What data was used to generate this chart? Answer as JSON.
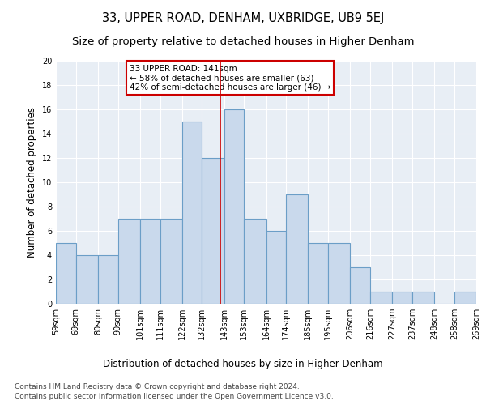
{
  "title": "33, UPPER ROAD, DENHAM, UXBRIDGE, UB9 5EJ",
  "subtitle": "Size of property relative to detached houses in Higher Denham",
  "xlabel": "Distribution of detached houses by size in Higher Denham",
  "ylabel": "Number of detached properties",
  "bins": [
    59,
    69,
    80,
    90,
    101,
    111,
    122,
    132,
    143,
    153,
    164,
    174,
    185,
    195,
    206,
    216,
    227,
    237,
    248,
    258,
    269
  ],
  "counts": [
    5,
    4,
    4,
    7,
    7,
    7,
    15,
    12,
    16,
    7,
    6,
    9,
    5,
    5,
    3,
    1,
    1,
    1,
    0,
    1
  ],
  "bar_facecolor": "#c9d9ec",
  "bar_edgecolor": "#6b9ec7",
  "vline_x": 141,
  "vline_color": "#cc0000",
  "annotation_line1": "33 UPPER ROAD: 141sqm",
  "annotation_line2": "← 58% of detached houses are smaller (63)",
  "annotation_line3": "42% of semi-detached houses are larger (46) →",
  "annotation_box_edgecolor": "#cc0000",
  "annotation_box_facecolor": "white",
  "ylim": [
    0,
    20
  ],
  "yticks": [
    0,
    2,
    4,
    6,
    8,
    10,
    12,
    14,
    16,
    18,
    20
  ],
  "tick_labels": [
    "59sqm",
    "69sqm",
    "80sqm",
    "90sqm",
    "101sqm",
    "111sqm",
    "122sqm",
    "132sqm",
    "143sqm",
    "153sqm",
    "164sqm",
    "174sqm",
    "185sqm",
    "195sqm",
    "206sqm",
    "216sqm",
    "227sqm",
    "237sqm",
    "248sqm",
    "258sqm",
    "269sqm"
  ],
  "background_color": "#e8eef5",
  "footer_line1": "Contains HM Land Registry data © Crown copyright and database right 2024.",
  "footer_line2": "Contains public sector information licensed under the Open Government Licence v3.0.",
  "title_fontsize": 10.5,
  "subtitle_fontsize": 9.5,
  "xlabel_fontsize": 8.5,
  "ylabel_fontsize": 8.5,
  "tick_fontsize": 7,
  "footer_fontsize": 6.5,
  "annotation_fontsize": 7.5
}
